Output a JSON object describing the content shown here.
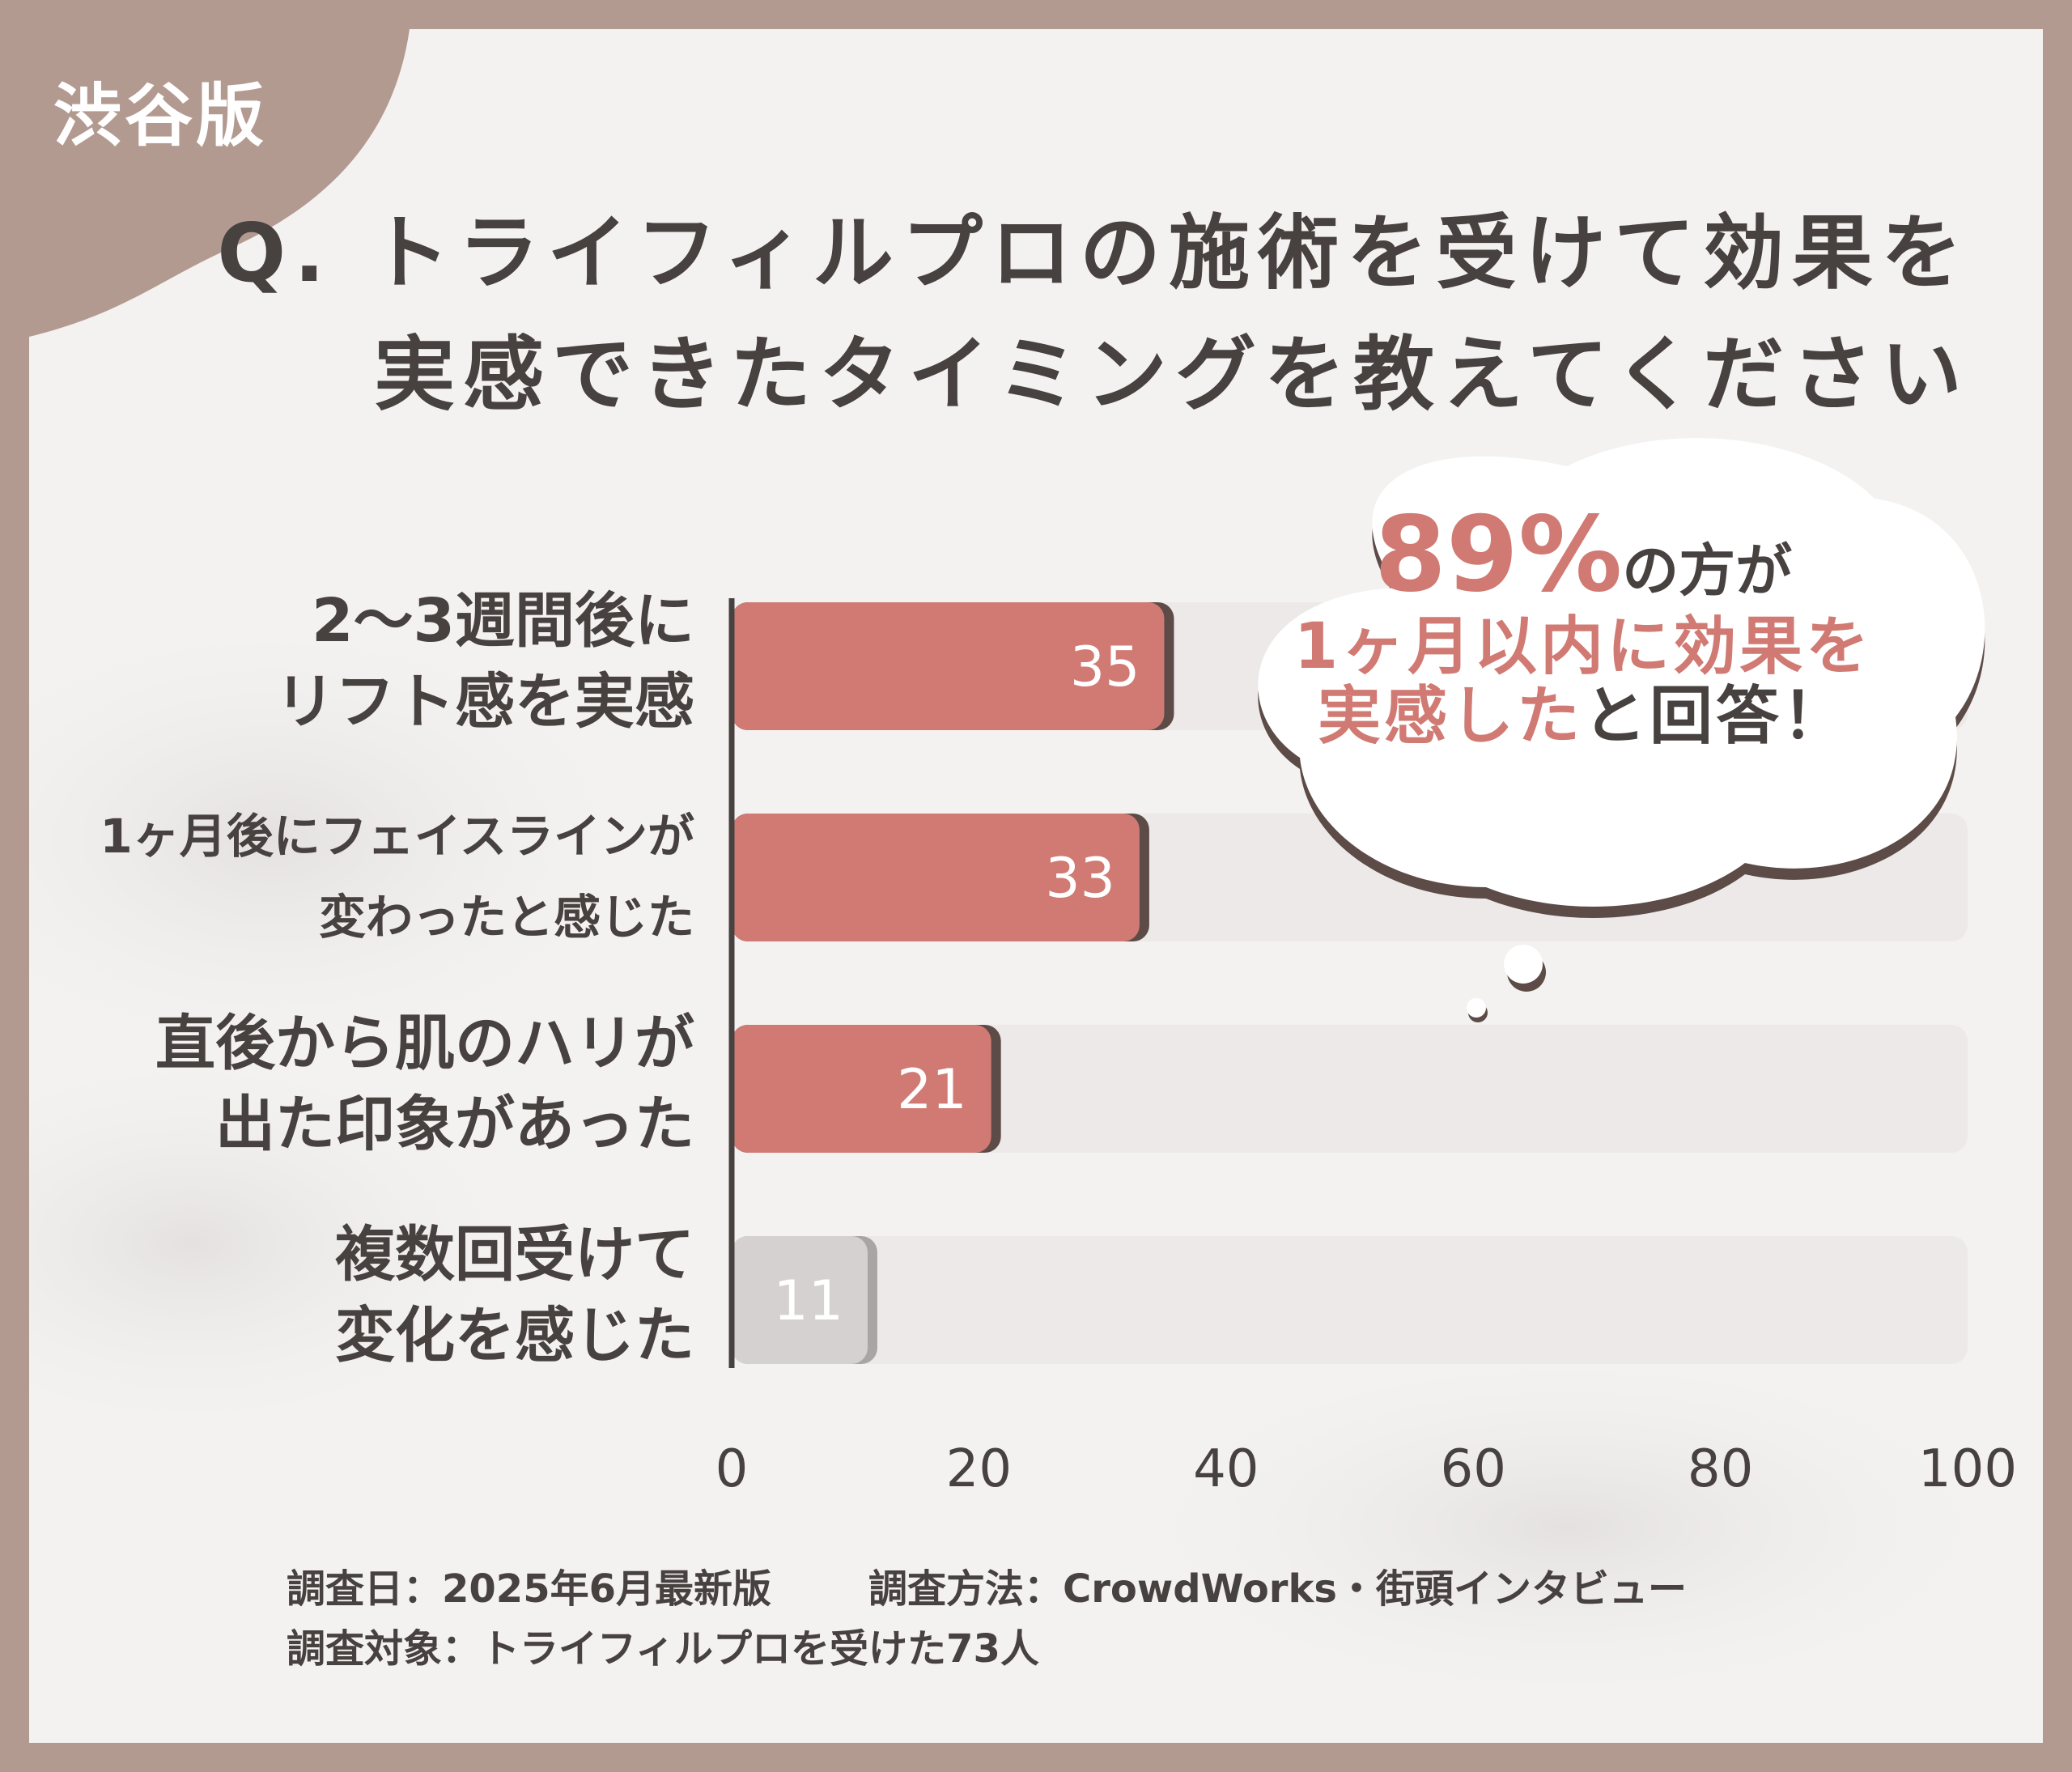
{
  "region_label": "渋谷版",
  "title": {
    "line1": "Q. トライフィルプロの施術を受けて効果を",
    "line2": "実感できたタイミングを教えてください"
  },
  "callout": {
    "highlight": "89%",
    "suffix": "の方が",
    "line2": "1ヶ月以内に効果を",
    "line3_accent": "実感した",
    "line3_rest": "と回答！"
  },
  "chart_data": {
    "type": "bar",
    "orientation": "horizontal",
    "categories": [
      [
        "2〜3週間後に",
        "リフト感を実感"
      ],
      [
        "1ヶ月後にフェイスラインが",
        "変わったと感じた"
      ],
      [
        "直後から肌のハリが",
        "出た印象があった"
      ],
      [
        "複数回受けて",
        "変化を感じた"
      ]
    ],
    "values": [
      35,
      33,
      21,
      11
    ],
    "xlim": [
      0,
      100
    ],
    "xticks": [
      "0",
      "20",
      "40",
      "60",
      "80",
      "100"
    ],
    "grid": false,
    "colors": {
      "bar": "#d07a73",
      "bar_shadow": "#5c4b47",
      "bar_muted": "#d4d1d0",
      "bar_muted_shadow": "#a9a5a4",
      "track": "#ece9e8"
    }
  },
  "footnotes": {
    "date": "調査日：2025年6月最新版",
    "method": "調査方法：CrowdWorks・街頭インタビュー",
    "target": "調査対象：トライフィルプロを受けた73人"
  }
}
